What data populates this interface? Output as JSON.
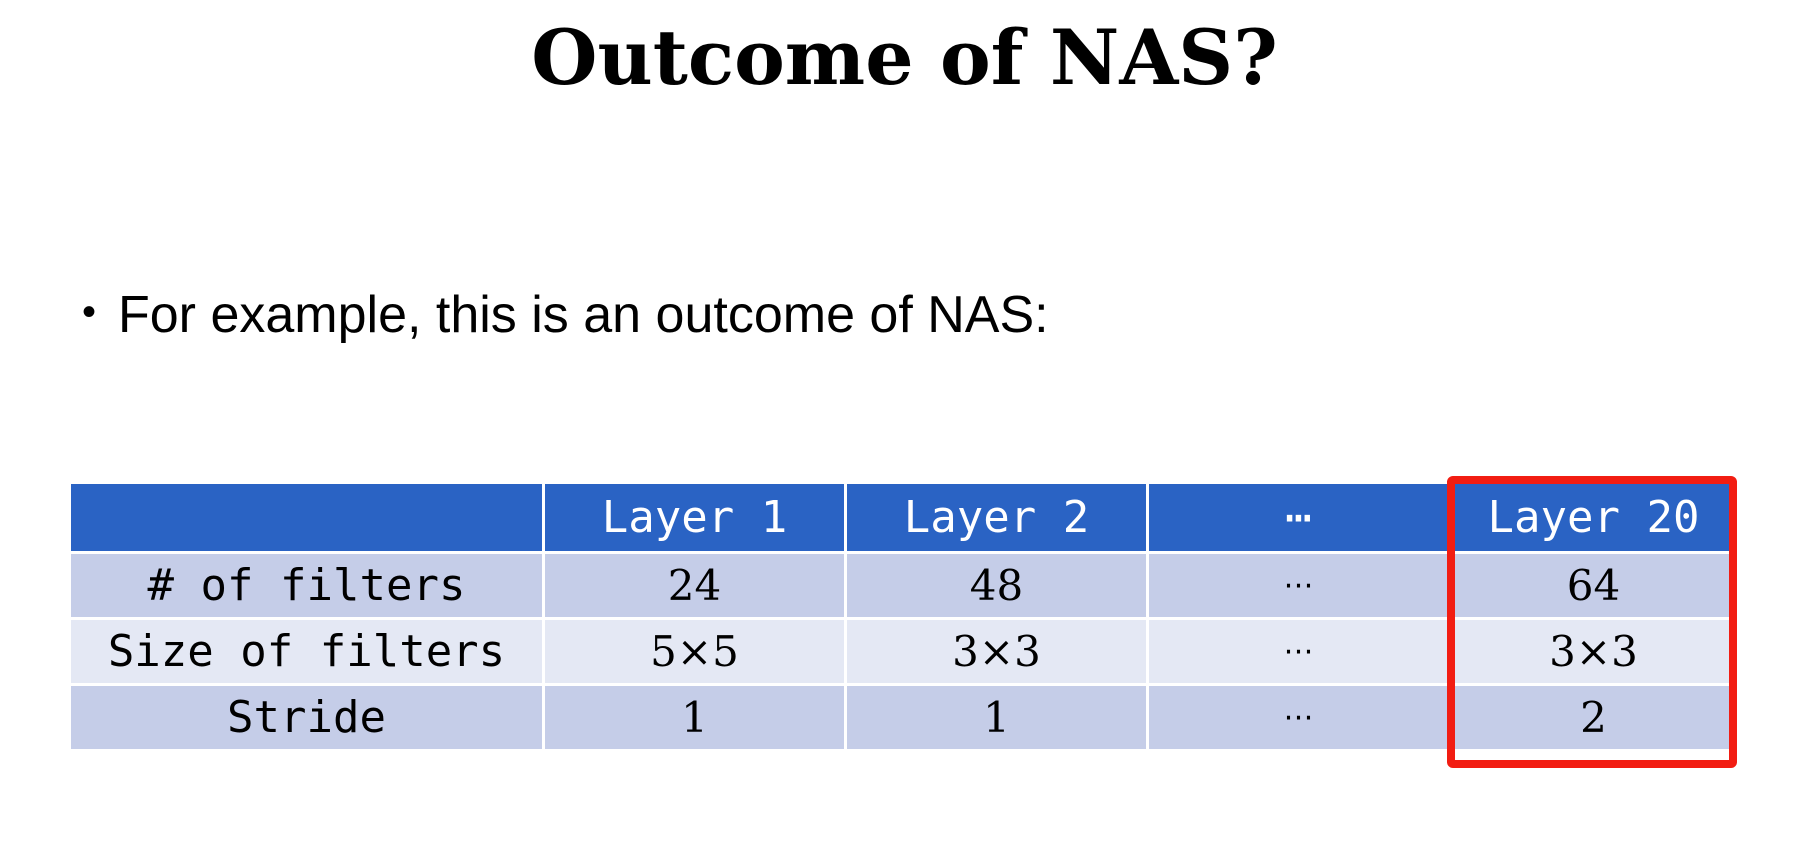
{
  "slide": {
    "title": "Outcome of NAS?",
    "bullet": "For example, this is an outcome of NAS:"
  },
  "table": {
    "headers": [
      "",
      "Layer 1",
      "Layer 2",
      "⋯",
      "Layer 20"
    ],
    "rows": [
      {
        "label": "# of filters",
        "values": [
          "24",
          "48",
          "⋯",
          "64"
        ]
      },
      {
        "label": "Size of filters",
        "values": [
          "5×5",
          "3×3",
          "⋯",
          "3×3"
        ]
      },
      {
        "label": "Stride",
        "values": [
          "1",
          "1",
          "⋯",
          "2"
        ]
      }
    ]
  },
  "colors": {
    "header_bg": "#2a63c4",
    "row_odd_bg": "#c5cde8",
    "row_even_bg": "#e4e8f4",
    "highlight": "#f21d12"
  }
}
